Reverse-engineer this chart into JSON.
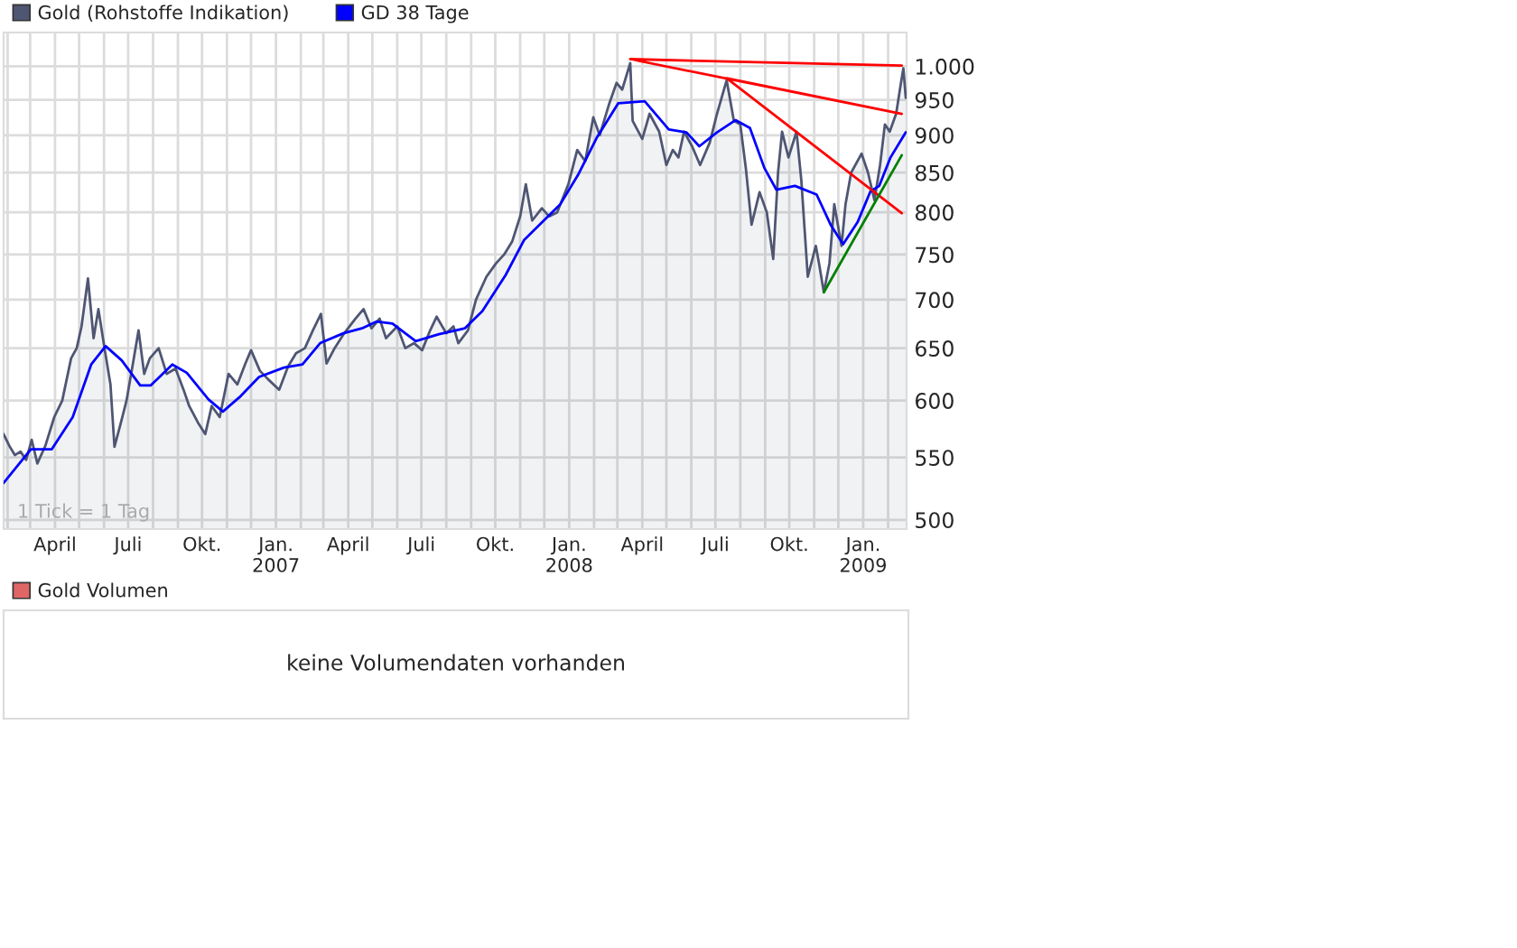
{
  "chart_data": [
    {
      "type": "line",
      "log": "y",
      "grid": true,
      "legend": "top left",
      "tick_labels": "xy",
      "xlim": [
        "2006-01-27",
        "2009-02-24"
      ],
      "ylim": [
        493,
        1053
      ],
      "yticks": [
        500,
        550,
        600,
        650,
        700,
        750,
        800,
        850,
        900,
        950,
        {
          "value": 1000,
          "label": "1.000"
        }
      ],
      "xticks": [
        {
          "value": "2006-02-01",
          "label": null
        },
        {
          "value": "2006-03-01",
          "label": null
        },
        {
          "value": "2006-04-01",
          "label": "April"
        },
        {
          "value": "2006-05-01",
          "label": null
        },
        {
          "value": "2006-06-01",
          "label": null
        },
        {
          "value": "2006-07-01",
          "label": "Juli"
        },
        {
          "value": "2006-08-01",
          "label": null
        },
        {
          "value": "2006-09-01",
          "label": null
        },
        {
          "value": "2006-10-01",
          "label": "Okt."
        },
        {
          "value": "2006-11-01",
          "label": null
        },
        {
          "value": "2006-12-01",
          "label": null
        },
        {
          "value": "2007-01-01",
          "label": "Jan.\n2007"
        },
        {
          "value": "2007-02-01",
          "label": null
        },
        {
          "value": "2007-03-01",
          "label": null
        },
        {
          "value": "2007-04-01",
          "label": "April"
        },
        {
          "value": "2007-05-01",
          "label": null
        },
        {
          "value": "2007-06-01",
          "label": null
        },
        {
          "value": "2007-07-01",
          "label": "Juli"
        },
        {
          "value": "2007-08-01",
          "label": null
        },
        {
          "value": "2007-09-01",
          "label": null
        },
        {
          "value": "2007-10-01",
          "label": "Okt."
        },
        {
          "value": "2007-11-01",
          "label": null
        },
        {
          "value": "2007-12-01",
          "label": null
        },
        {
          "value": "2008-01-01",
          "label": "Jan.\n2008"
        },
        {
          "value": "2008-02-01",
          "label": null
        },
        {
          "value": "2008-03-01",
          "label": null
        },
        {
          "value": "2008-04-01",
          "label": "April"
        },
        {
          "value": "2008-05-01",
          "label": null
        },
        {
          "value": "2008-06-01",
          "label": null
        },
        {
          "value": "2008-07-01",
          "label": "Juli"
        },
        {
          "value": "2008-08-01",
          "label": null
        },
        {
          "value": "2008-09-01",
          "label": null
        },
        {
          "value": "2008-10-01",
          "label": "Okt."
        },
        {
          "value": "2008-11-01",
          "label": null
        },
        {
          "value": "2008-12-01",
          "label": null
        },
        {
          "value": "2009-01-01",
          "label": "Jan.\n2009"
        },
        {
          "value": "2009-02-01",
          "label": null
        }
      ],
      "annotations": [
        "1 Tick = 1 Tag"
      ],
      "series": [
        {
          "name": "Gold (Rohstoffe Indikation)",
          "type": "area",
          "color": "#4f5673",
          "x": [
            "2006-01-27",
            "2006-02-03",
            "2006-02-10",
            "2006-02-17",
            "2006-02-24",
            "2006-03-03",
            "2006-03-10",
            "2006-03-20",
            "2006-03-31",
            "2006-04-10",
            "2006-04-21",
            "2006-04-28",
            "2006-05-04",
            "2006-05-12",
            "2006-05-19",
            "2006-05-25",
            "2006-06-02",
            "2006-06-09",
            "2006-06-14",
            "2006-06-22",
            "2006-06-29",
            "2006-07-07",
            "2006-07-14",
            "2006-07-21",
            "2006-07-28",
            "2006-08-08",
            "2006-08-18",
            "2006-08-29",
            "2006-09-08",
            "2006-09-15",
            "2006-09-26",
            "2006-10-05",
            "2006-10-13",
            "2006-10-23",
            "2006-11-03",
            "2006-11-14",
            "2006-11-24",
            "2006-12-01",
            "2006-12-12",
            "2006-12-22",
            "2007-01-05",
            "2007-01-16",
            "2007-01-26",
            "2007-02-06",
            "2007-02-16",
            "2007-02-26",
            "2007-03-05",
            "2007-03-15",
            "2007-03-27",
            "2007-04-10",
            "2007-04-20",
            "2007-04-30",
            "2007-05-10",
            "2007-05-18",
            "2007-06-01",
            "2007-06-11",
            "2007-06-22",
            "2007-07-02",
            "2007-07-12",
            "2007-07-20",
            "2007-08-01",
            "2007-08-10",
            "2007-08-16",
            "2007-08-28",
            "2007-09-07",
            "2007-09-20",
            "2007-10-02",
            "2007-10-12",
            "2007-10-22",
            "2007-11-01",
            "2007-11-08",
            "2007-11-16",
            "2007-11-28",
            "2007-12-07",
            "2007-12-17",
            "2007-12-31",
            "2008-01-11",
            "2008-01-21",
            "2008-01-31",
            "2008-02-08",
            "2008-02-20",
            "2008-02-29",
            "2008-03-07",
            "2008-03-17",
            "2008-03-20",
            "2008-04-01",
            "2008-04-10",
            "2008-04-22",
            "2008-05-01",
            "2008-05-09",
            "2008-05-16",
            "2008-05-23",
            "2008-06-02",
            "2008-06-12",
            "2008-06-24",
            "2008-07-03",
            "2008-07-15",
            "2008-07-24",
            "2008-08-01",
            "2008-08-08",
            "2008-08-15",
            "2008-08-25",
            "2008-09-03",
            "2008-09-11",
            "2008-09-17",
            "2008-09-22",
            "2008-09-30",
            "2008-10-10",
            "2008-10-16",
            "2008-10-24",
            "2008-11-03",
            "2008-11-07",
            "2008-11-13",
            "2008-11-20",
            "2008-11-26",
            "2008-12-05",
            "2008-12-10",
            "2008-12-17",
            "2008-12-30",
            "2009-01-07",
            "2009-01-15",
            "2009-01-22",
            "2009-01-28",
            "2009-02-03",
            "2009-02-11",
            "2009-02-17",
            "2009-02-20",
            "2009-02-23"
          ],
          "values": [
            570,
            560,
            552,
            555,
            548,
            565,
            545,
            560,
            585,
            600,
            640,
            650,
            672,
            723,
            660,
            690,
            648,
            615,
            559,
            580,
            600,
            635,
            668,
            625,
            640,
            650,
            625,
            630,
            610,
            595,
            580,
            570,
            595,
            585,
            625,
            615,
            635,
            648,
            628,
            620,
            610,
            632,
            645,
            650,
            668,
            685,
            635,
            650,
            665,
            680,
            690,
            670,
            680,
            660,
            672,
            650,
            655,
            648,
            668,
            682,
            665,
            672,
            655,
            668,
            700,
            725,
            740,
            750,
            765,
            795,
            835,
            790,
            805,
            795,
            800,
            835,
            880,
            865,
            925,
            900,
            945,
            975,
            965,
            1005,
            920,
            895,
            930,
            905,
            860,
            880,
            870,
            905,
            885,
            860,
            890,
            930,
            979,
            920,
            915,
            855,
            785,
            825,
            800,
            745,
            850,
            905,
            870,
            905,
            840,
            725,
            760,
            740,
            708,
            740,
            810,
            760,
            810,
            850,
            875,
            850,
            815,
            860,
            915,
            905,
            930,
            975,
            997,
            953
          ]
        },
        {
          "name": "GD 38 Tage",
          "type": "line",
          "color": "#0000ff",
          "x": [
            "2006-01-27",
            "2006-03-02",
            "2006-03-28",
            "2006-04-23",
            "2006-05-16",
            "2006-06-03",
            "2006-06-23",
            "2006-07-16",
            "2006-07-29",
            "2006-08-25",
            "2006-09-12",
            "2006-10-09",
            "2006-10-27",
            "2006-11-18",
            "2006-12-11",
            "2007-01-11",
            "2007-02-03",
            "2007-02-25",
            "2007-03-26",
            "2007-04-18",
            "2007-05-06",
            "2007-05-26",
            "2007-06-24",
            "2007-07-23",
            "2007-08-24",
            "2007-09-15",
            "2007-10-14",
            "2007-11-06",
            "2007-12-21",
            "2008-01-12",
            "2008-02-04",
            "2008-03-02",
            "2008-04-04",
            "2008-05-04",
            "2008-05-26",
            "2008-06-11",
            "2008-07-03",
            "2008-07-26",
            "2008-08-13",
            "2008-08-31",
            "2008-09-15",
            "2008-10-08",
            "2008-11-04",
            "2008-11-22",
            "2008-12-07",
            "2008-12-25",
            "2009-01-10",
            "2009-01-21",
            "2009-02-04",
            "2009-02-23"
          ],
          "values": [
            529,
            557,
            557,
            585,
            634,
            652,
            638,
            614,
            614,
            634,
            626,
            601,
            590,
            604,
            622,
            631,
            634,
            655,
            665,
            670,
            677,
            675,
            657,
            664,
            670,
            688,
            727,
            767,
            810,
            847,
            896,
            945,
            948,
            908,
            904,
            885,
            904,
            921,
            910,
            856,
            828,
            833,
            822,
            784,
            762,
            788,
            826,
            833,
            870,
            904
          ]
        },
        {
          "type": "line",
          "color": "#ff0000",
          "x": [
            "2008-03-17",
            "2009-02-18",
            "2008-03-17",
            "2009-02-18",
            "2008-07-15",
            "2009-02-18"
          ],
          "values": [
            1011,
            1001,
            1011,
            930,
            982,
            799
          ]
        },
        {
          "type": "line",
          "color": "#008000",
          "x": [
            "2008-11-13",
            "2009-02-18"
          ],
          "values": [
            708,
            873
          ]
        }
      ]
    },
    {
      "type": "other",
      "legend": "top left",
      "series": [
        {
          "name": "Gold Volumen",
          "color": "#e06666"
        }
      ],
      "annotations": [
        "keine Volumendaten vorhanden"
      ]
    }
  ]
}
